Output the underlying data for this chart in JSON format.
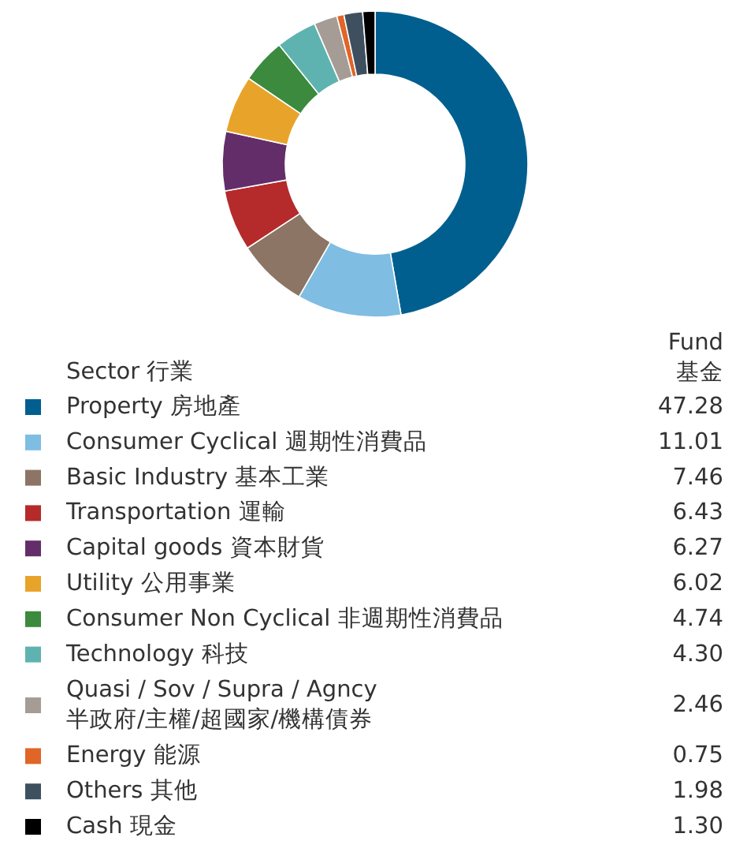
{
  "chart_data": {
    "type": "donut",
    "legend_title": "Sector 行業",
    "annotations": [
      "Fund\n基金"
    ],
    "categories": [
      "Property 房地產",
      "Consumer Cyclical 週期性消費品",
      "Basic Industry 基本工業",
      "Transportation 運輸",
      "Capital goods 資本財貨",
      "Utility 公用事業",
      "Consumer Non Cyclical 非週期性消費品",
      "Technology 科技",
      "Quasi / Sov / Supra / Agncy\n半政府/主權/超國家/機構債券",
      "Energy 能源",
      "Others 其他",
      "Cash 現金"
    ],
    "values": [
      47.28,
      11.01,
      7.46,
      6.43,
      6.27,
      6.02,
      4.74,
      4.3,
      2.46,
      0.75,
      1.98,
      1.3
    ],
    "value_labels": [
      "47.28",
      "11.01",
      "7.46",
      "6.43",
      "6.27",
      "6.02",
      "4.74",
      "4.30",
      "2.46",
      "0.75",
      "1.98",
      "1.30"
    ],
    "colors": [
      "#005f8f",
      "#7fbde3",
      "#8c7565",
      "#b52a2a",
      "#632d6a",
      "#e8a42a",
      "#3b8a3e",
      "#5eb3b0",
      "#a59d95",
      "#e06527",
      "#3e5060",
      "#000000"
    ],
    "legend": "bottom"
  }
}
